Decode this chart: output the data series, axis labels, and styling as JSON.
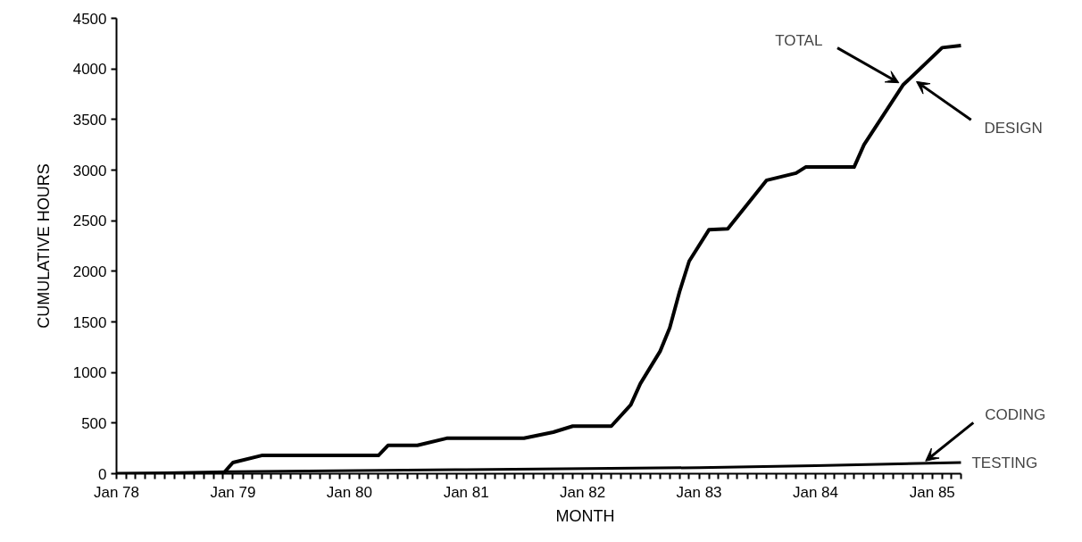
{
  "chart_data": {
    "type": "line",
    "xlabel": "MONTH",
    "ylabel": "CUMULATIVE HOURS",
    "xlim": [
      "1978-01",
      "1985-04"
    ],
    "ylim": [
      0,
      4500
    ],
    "yticks": [
      0,
      500,
      1000,
      1500,
      2000,
      2500,
      3000,
      3500,
      4000,
      4500
    ],
    "xticks": [
      {
        "value": "1978-01",
        "label": "Jan 78"
      },
      {
        "value": "1978-02",
        "label": null
      },
      {
        "value": "1978-03",
        "label": null
      },
      {
        "value": "1978-04",
        "label": null
      },
      {
        "value": "1978-05",
        "label": null
      },
      {
        "value": "1978-06",
        "label": null
      },
      {
        "value": "1978-07",
        "label": null
      },
      {
        "value": "1978-08",
        "label": null
      },
      {
        "value": "1978-09",
        "label": null
      },
      {
        "value": "1978-10",
        "label": null
      },
      {
        "value": "1978-11",
        "label": null
      },
      {
        "value": "1978-12",
        "label": null
      },
      {
        "value": "1979-01",
        "label": "Jan 79"
      },
      {
        "value": "1979-02",
        "label": null
      },
      {
        "value": "1979-03",
        "label": null
      },
      {
        "value": "1979-04",
        "label": null
      },
      {
        "value": "1979-05",
        "label": null
      },
      {
        "value": "1979-06",
        "label": null
      },
      {
        "value": "1979-07",
        "label": null
      },
      {
        "value": "1979-08",
        "label": null
      },
      {
        "value": "1979-09",
        "label": null
      },
      {
        "value": "1979-10",
        "label": null
      },
      {
        "value": "1979-11",
        "label": null
      },
      {
        "value": "1979-12",
        "label": null
      },
      {
        "value": "1980-01",
        "label": "Jan 80"
      },
      {
        "value": "1980-02",
        "label": null
      },
      {
        "value": "1980-03",
        "label": null
      },
      {
        "value": "1980-04",
        "label": null
      },
      {
        "value": "1980-05",
        "label": null
      },
      {
        "value": "1980-06",
        "label": null
      },
      {
        "value": "1980-07",
        "label": null
      },
      {
        "value": "1980-08",
        "label": null
      },
      {
        "value": "1980-09",
        "label": null
      },
      {
        "value": "1980-10",
        "label": null
      },
      {
        "value": "1980-11",
        "label": null
      },
      {
        "value": "1980-12",
        "label": null
      },
      {
        "value": "1981-01",
        "label": "Jan 81"
      },
      {
        "value": "1981-02",
        "label": null
      },
      {
        "value": "1981-03",
        "label": null
      },
      {
        "value": "1981-04",
        "label": null
      },
      {
        "value": "1981-05",
        "label": null
      },
      {
        "value": "1981-06",
        "label": null
      },
      {
        "value": "1981-07",
        "label": null
      },
      {
        "value": "1981-08",
        "label": null
      },
      {
        "value": "1981-09",
        "label": null
      },
      {
        "value": "1981-10",
        "label": null
      },
      {
        "value": "1981-11",
        "label": null
      },
      {
        "value": "1981-12",
        "label": null
      },
      {
        "value": "1982-01",
        "label": "Jan 82"
      },
      {
        "value": "1982-02",
        "label": null
      },
      {
        "value": "1982-03",
        "label": null
      },
      {
        "value": "1982-04",
        "label": null
      },
      {
        "value": "1982-05",
        "label": null
      },
      {
        "value": "1982-06",
        "label": null
      },
      {
        "value": "1982-07",
        "label": null
      },
      {
        "value": "1982-08",
        "label": null
      },
      {
        "value": "1982-09",
        "label": null
      },
      {
        "value": "1982-10",
        "label": null
      },
      {
        "value": "1982-11",
        "label": null
      },
      {
        "value": "1982-12",
        "label": null
      },
      {
        "value": "1983-01",
        "label": "Jan 83"
      },
      {
        "value": "1983-02",
        "label": null
      },
      {
        "value": "1983-03",
        "label": null
      },
      {
        "value": "1983-04",
        "label": null
      },
      {
        "value": "1983-05",
        "label": null
      },
      {
        "value": "1983-06",
        "label": null
      },
      {
        "value": "1983-07",
        "label": null
      },
      {
        "value": "1983-08",
        "label": null
      },
      {
        "value": "1983-09",
        "label": null
      },
      {
        "value": "1983-10",
        "label": null
      },
      {
        "value": "1983-11",
        "label": null
      },
      {
        "value": "1983-12",
        "label": null
      },
      {
        "value": "1984-01",
        "label": "Jan 84"
      },
      {
        "value": "1984-02",
        "label": null
      },
      {
        "value": "1984-03",
        "label": null
      },
      {
        "value": "1984-04",
        "label": null
      },
      {
        "value": "1984-05",
        "label": null
      },
      {
        "value": "1984-06",
        "label": null
      },
      {
        "value": "1984-07",
        "label": null
      },
      {
        "value": "1984-08",
        "label": null
      },
      {
        "value": "1984-09",
        "label": null
      },
      {
        "value": "1984-10",
        "label": null
      },
      {
        "value": "1984-11",
        "label": null
      },
      {
        "value": "1984-12",
        "label": null
      },
      {
        "value": "1985-01",
        "label": "Jan 85"
      },
      {
        "value": "1985-02",
        "label": null
      },
      {
        "value": "1985-03",
        "label": null
      },
      {
        "value": "1985-04",
        "label": null
      }
    ],
    "grid": false,
    "line_style": "solid",
    "marker": "none",
    "series": [
      {
        "color": "#000000",
        "x": [
          "1978-01",
          "1978-12",
          "1979-01",
          "1979-04",
          "1980-04",
          "1980-05",
          "1980-08",
          "1980-11",
          "1981-07",
          "1981-10",
          "1981-12",
          "1982-04",
          "1982-06",
          "1982-07",
          "1982-09",
          "1982-10",
          "1982-11",
          "1982-12",
          "1983-02",
          "1983-04",
          "1983-08",
          "1983-11",
          "1983-12",
          "1984-05",
          "1984-06",
          "1984-10",
          "1985-02",
          "1985-04"
        ],
        "values": [
          0,
          0,
          110,
          180,
          180,
          280,
          280,
          350,
          350,
          410,
          470,
          470,
          680,
          890,
          1210,
          1440,
          1800,
          2100,
          2410,
          2420,
          2900,
          2970,
          3030,
          3030,
          3250,
          3840,
          4210,
          4230
        ]
      },
      {
        "color": "#000000",
        "x": [
          "1978-01",
          "1979-01",
          "1981-01",
          "1983-01",
          "1984-01",
          "1985-04"
        ],
        "values": [
          0,
          20,
          40,
          60,
          80,
          110
        ]
      }
    ],
    "annotations": [
      {
        "text": "TOTAL",
        "x": "1984-10",
        "y": 3840
      },
      {
        "text": "DESIGN",
        "x": "1984-11",
        "y": 3900
      },
      {
        "text": "CODING",
        "x": "1984-12",
        "y": 100
      },
      {
        "text": "TESTING",
        "x": "1985-04",
        "y": 110
      }
    ]
  }
}
